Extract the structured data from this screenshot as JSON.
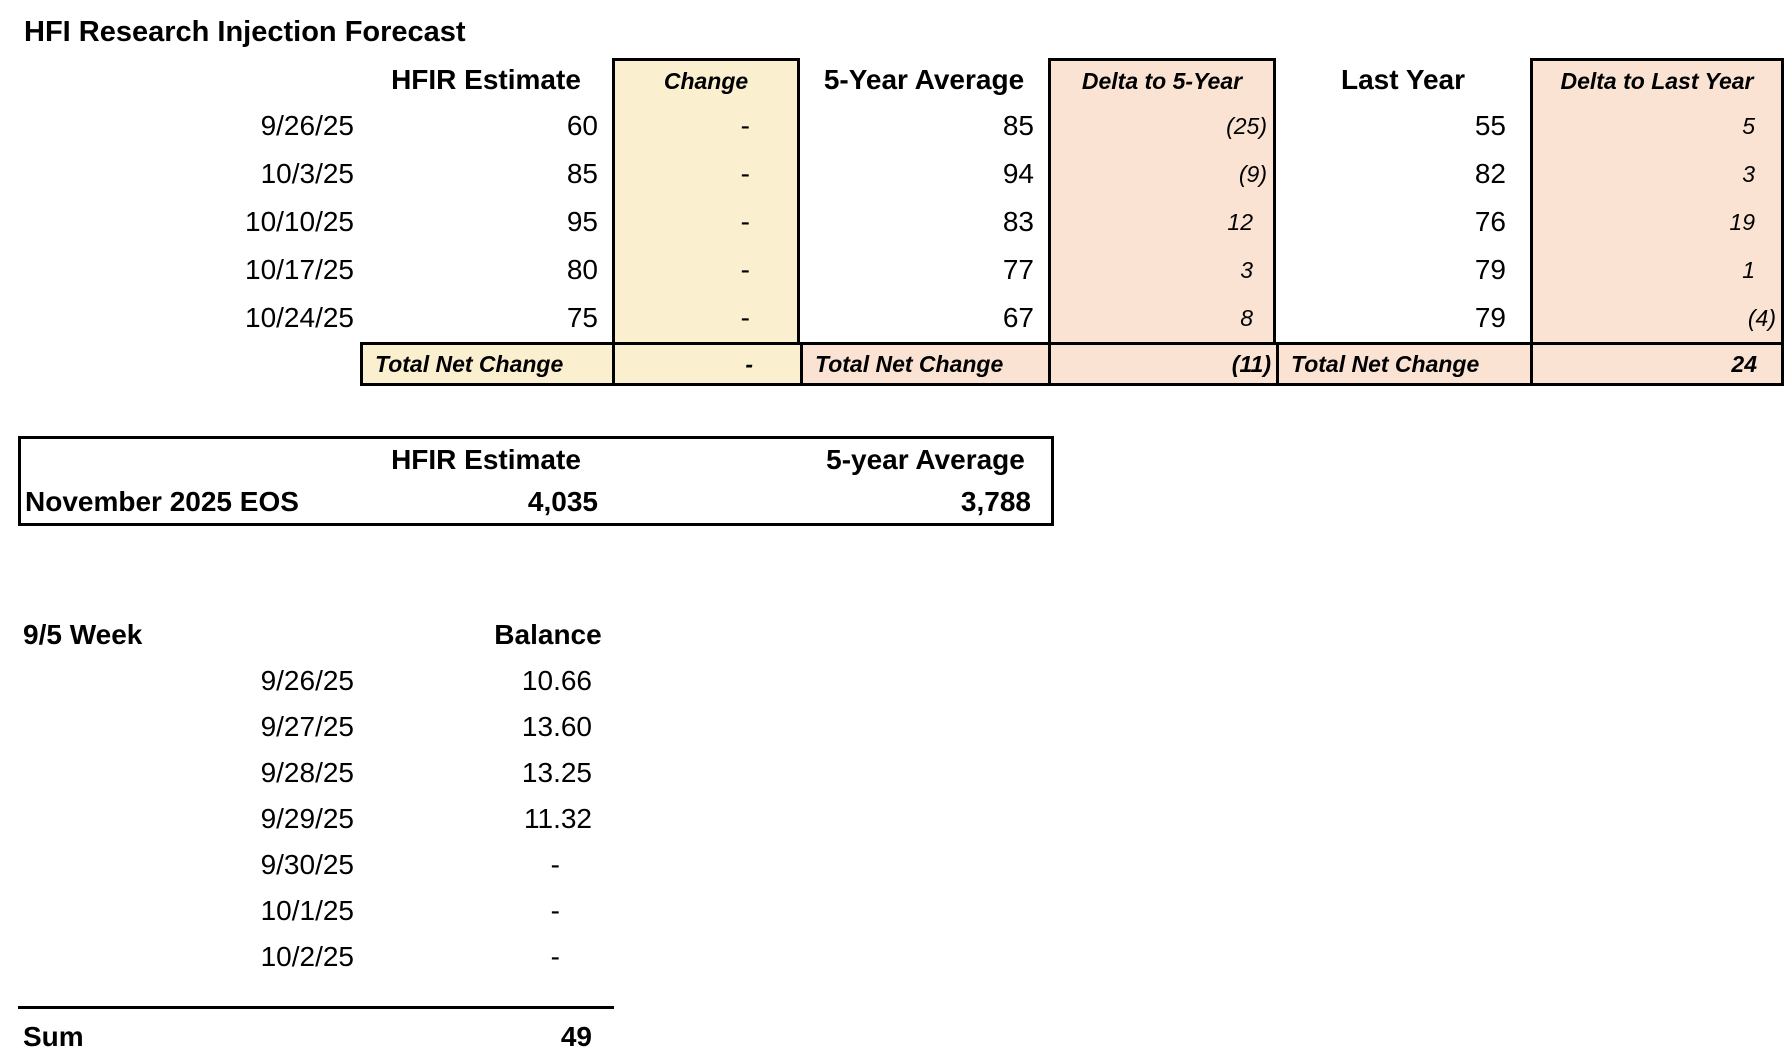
{
  "title": "HFI Research Injection Forecast",
  "colors": {
    "yellow_fill": "#FAF0D0",
    "peach_fill": "#FAE3D3",
    "border_black": "#000000"
  },
  "forecast_table": {
    "headers": {
      "hfir": "HFIR Estimate",
      "change": "Change",
      "avg5": "5-Year Average",
      "delta5": "Delta to 5-Year",
      "last_year": "Last Year",
      "delta_ly": "Delta to Last Year"
    },
    "rows": [
      {
        "date": "9/26/25",
        "hfir": "60",
        "change": "-",
        "avg5": "85",
        "delta5": "(25)",
        "last_year": "55",
        "delta_ly": "5"
      },
      {
        "date": "10/3/25",
        "hfir": "85",
        "change": "-",
        "avg5": "94",
        "delta5": "(9)",
        "last_year": "82",
        "delta_ly": "3"
      },
      {
        "date": "10/10/25",
        "hfir": "95",
        "change": "-",
        "avg5": "83",
        "delta5": "12",
        "last_year": "76",
        "delta_ly": "19"
      },
      {
        "date": "10/17/25",
        "hfir": "80",
        "change": "-",
        "avg5": "77",
        "delta5": "3",
        "last_year": "79",
        "delta_ly": "1"
      },
      {
        "date": "10/24/25",
        "hfir": "75",
        "change": "-",
        "avg5": "67",
        "delta5": "8",
        "last_year": "79",
        "delta_ly": "(4)"
      }
    ],
    "totals": {
      "label": "Total Net Change",
      "change": "-",
      "delta5": "(11)",
      "delta_ly": "24"
    }
  },
  "eos_table": {
    "headers": {
      "hfir": "HFIR Estimate",
      "avg5": "5-year Average"
    },
    "row": {
      "label": "November 2025 EOS",
      "hfir": "4,035",
      "avg5": "3,788"
    }
  },
  "week_table": {
    "title": "9/5 Week",
    "balance_header": "Balance",
    "rows": [
      {
        "date": "9/26/25",
        "balance": "10.66"
      },
      {
        "date": "9/27/25",
        "balance": "13.60"
      },
      {
        "date": "9/28/25",
        "balance": "13.25"
      },
      {
        "date": "9/29/25",
        "balance": "11.32"
      },
      {
        "date": "9/30/25",
        "balance": "-"
      },
      {
        "date": "10/1/25",
        "balance": "-"
      },
      {
        "date": "10/2/25",
        "balance": "-"
      }
    ],
    "sum": {
      "label": "Sum",
      "value": "49"
    }
  }
}
